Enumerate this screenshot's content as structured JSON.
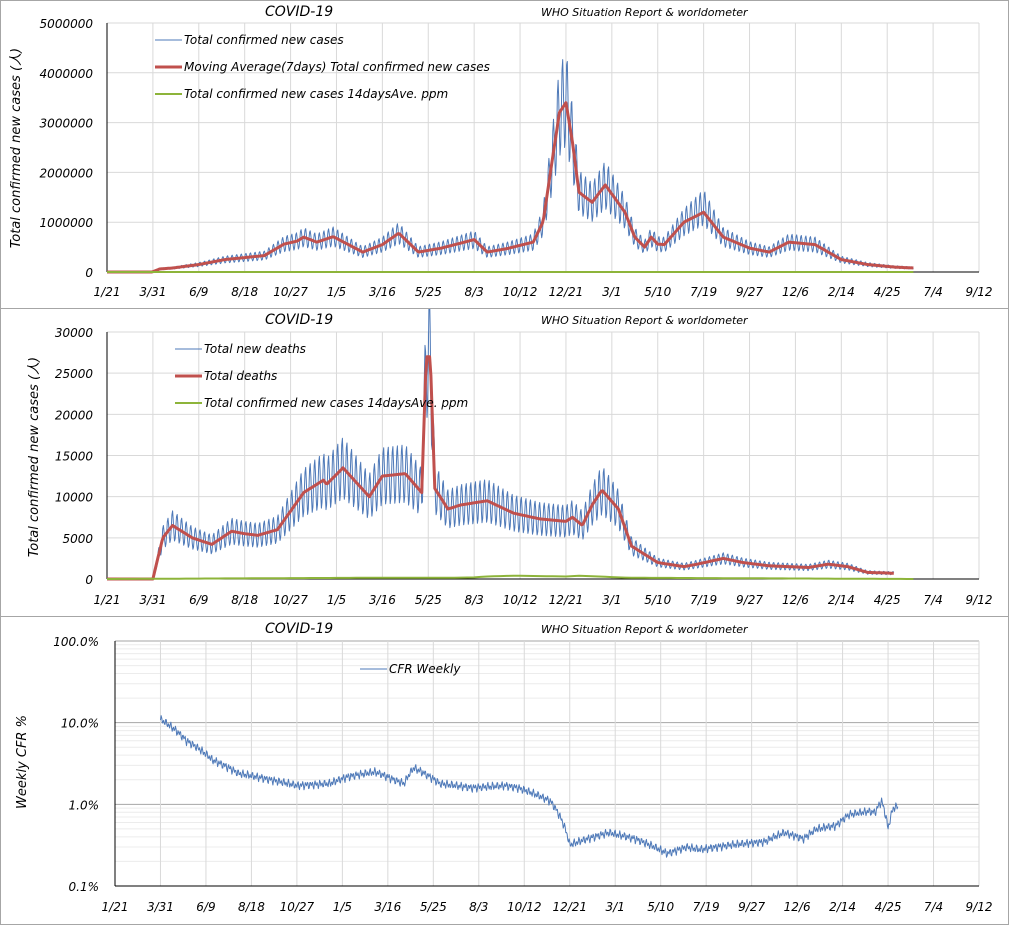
{
  "x_tick_labels": [
    "1/21",
    "3/31",
    "6/9",
    "8/18",
    "10/27",
    "1/5",
    "3/16",
    "5/25",
    "8/3",
    "10/12",
    "12/21",
    "3/1",
    "5/10",
    "7/19",
    "9/27",
    "12/6",
    "2/14",
    "4/25",
    "7/4",
    "9/12"
  ],
  "colors": {
    "blue": "#4e79b8",
    "red": "#c0504d",
    "green": "#8db43a",
    "grid": "#d9d9d9",
    "axis": "#000000"
  },
  "chart_data": [
    {
      "type": "line",
      "title": "COVID-19",
      "subtitle": "WHO Situation Report & worldometer",
      "ylabel": "Total confirmed new cases (人)",
      "xlabel": "",
      "ylim": [
        0,
        5000000
      ],
      "yticks": [
        "0",
        "1000000",
        "2000000",
        "3000000",
        "4000000",
        "5000000"
      ],
      "grid": true,
      "legend": "top-left",
      "series": [
        {
          "name": "Total confirmed new cases",
          "color": "blue",
          "kind": "daily",
          "x": [
            0,
            69,
            80,
            100,
            140,
            180,
            210,
            240,
            270,
            290,
            300,
            320,
            345,
            390,
            420,
            445,
            475,
            510,
            560,
            580,
            610,
            650,
            665,
            690,
            700,
            710,
            720,
            740,
            760,
            790,
            805,
            820,
            830,
            840,
            850,
            880,
            910,
            940,
            980,
            1010,
            1040,
            1080,
            1120,
            1160,
            1200,
            1230
          ],
          "y": [
            0,
            0,
            60000,
            80000,
            150000,
            250000,
            290000,
            330000,
            560000,
            620000,
            700000,
            600000,
            710000,
            400000,
            550000,
            780000,
            400000,
            480000,
            650000,
            400000,
            470000,
            600000,
            1000000,
            3200000,
            3500000,
            2600000,
            1600000,
            1400000,
            1750000,
            1200000,
            700000,
            500000,
            700000,
            560000,
            550000,
            1000000,
            1300000,
            700000,
            480000,
            400000,
            600000,
            550000,
            250000,
            150000,
            100000,
            80000
          ]
        },
        {
          "name": "Moving Average(7days) Total confirmed new cases",
          "color": "red",
          "kind": "avg",
          "x": [
            0,
            69,
            80,
            100,
            140,
            180,
            210,
            240,
            270,
            290,
            300,
            320,
            345,
            390,
            420,
            445,
            475,
            510,
            560,
            580,
            610,
            650,
            665,
            690,
            700,
            710,
            720,
            740,
            760,
            790,
            805,
            820,
            830,
            840,
            850,
            880,
            910,
            940,
            980,
            1010,
            1040,
            1080,
            1120,
            1160,
            1200,
            1230
          ],
          "y": [
            0,
            0,
            60000,
            80000,
            150000,
            250000,
            290000,
            330000,
            560000,
            620000,
            700000,
            600000,
            710000,
            400000,
            550000,
            780000,
            400000,
            480000,
            650000,
            400000,
            470000,
            600000,
            1000000,
            3200000,
            3400000,
            2600000,
            1600000,
            1400000,
            1750000,
            1200000,
            700000,
            500000,
            700000,
            560000,
            550000,
            1000000,
            1200000,
            700000,
            480000,
            400000,
            600000,
            550000,
            250000,
            150000,
            100000,
            80000
          ]
        },
        {
          "name": "Total confirmed new cases 14daysAve. ppm",
          "color": "green",
          "kind": "flat",
          "x": [
            0,
            1230
          ],
          "y": [
            0,
            0
          ]
        }
      ]
    },
    {
      "type": "line",
      "title": "COVID-19",
      "subtitle": "WHO Situation Report & worldometer",
      "ylabel": "Total confirmed new cases (人)",
      "xlabel": "",
      "ylim": [
        0,
        30000
      ],
      "yticks": [
        "0",
        "5000",
        "10000",
        "15000",
        "20000",
        "25000",
        "30000"
      ],
      "grid": true,
      "legend": "top-left",
      "series": [
        {
          "name": "Total new deaths",
          "color": "blue",
          "kind": "daily",
          "x": [
            0,
            50,
            55,
            70,
            85,
            100,
            130,
            160,
            190,
            210,
            230,
            260,
            300,
            330,
            335,
            360,
            400,
            420,
            455,
            480,
            487,
            493,
            500,
            520,
            540,
            580,
            620,
            660,
            700,
            710,
            725,
            740,
            755,
            780,
            800,
            840,
            880,
            900,
            940,
            970,
            1010,
            1040,
            1070,
            1100,
            1130,
            1160,
            1200
          ],
          "y": [
            0,
            0,
            0,
            0,
            5000,
            6500,
            5000,
            4200,
            5800,
            5500,
            5300,
            6000,
            10500,
            12000,
            11500,
            13500,
            10000,
            12500,
            12800,
            10500,
            27000,
            27000,
            11000,
            8500,
            9000,
            9500,
            8000,
            7300,
            7000,
            7500,
            6500,
            9000,
            10800,
            8500,
            4000,
            2000,
            1500,
            1800,
            2500,
            2000,
            1600,
            1500,
            1400,
            1800,
            1500,
            800,
            700
          ]
        },
        {
          "name": "Total deaths",
          "color": "red",
          "kind": "avg",
          "x": [
            0,
            50,
            55,
            70,
            85,
            100,
            130,
            160,
            190,
            210,
            230,
            260,
            300,
            330,
            335,
            360,
            400,
            420,
            455,
            480,
            487,
            493,
            500,
            520,
            540,
            580,
            620,
            660,
            700,
            710,
            725,
            740,
            755,
            780,
            800,
            840,
            880,
            900,
            940,
            970,
            1010,
            1040,
            1070,
            1100,
            1130,
            1160,
            1200
          ],
          "y": [
            0,
            0,
            0,
            0,
            5000,
            6500,
            5000,
            4200,
            5800,
            5500,
            5300,
            6000,
            10500,
            12000,
            11500,
            13500,
            10000,
            12500,
            12800,
            10500,
            27000,
            27000,
            11000,
            8500,
            9000,
            9500,
            8000,
            7300,
            7000,
            7500,
            6500,
            9000,
            10800,
            8500,
            4000,
            2000,
            1500,
            1800,
            2500,
            2000,
            1600,
            1500,
            1400,
            1800,
            1500,
            800,
            700
          ]
        },
        {
          "name": "Total confirmed new cases 14daysAve. ppm",
          "color": "green",
          "kind": "flat",
          "x": [
            0,
            400,
            520,
            560,
            580,
            620,
            700,
            720,
            780,
            800,
            1230
          ],
          "y": [
            0,
            150,
            150,
            200,
            300,
            400,
            300,
            400,
            200,
            150,
            0
          ]
        }
      ]
    },
    {
      "type": "line",
      "title": "COVID-19",
      "subtitle": "WHO Situation Report & worldometer",
      "ylabel": "Weekly CFR %",
      "xlabel": "",
      "yscale": "log",
      "ylim": [
        0.1,
        100
      ],
      "yticks": [
        "0.1%",
        "1.0%",
        "10.0%",
        "100.0%"
      ],
      "grid": true,
      "legend": "top-left",
      "series": [
        {
          "name": "CFR Weekly",
          "color": "blue",
          "kind": "daily",
          "x": [
            70,
            110,
            150,
            190,
            240,
            280,
            330,
            360,
            400,
            430,
            445,
            460,
            500,
            550,
            600,
            620,
            670,
            700,
            760,
            800,
            850,
            880,
            900,
            950,
            1000,
            1030,
            1060,
            1080,
            1110,
            1130,
            1150,
            1160,
            1170,
            1180,
            1190,
            1198,
            1205
          ],
          "y": [
            11,
            6,
            3.5,
            2.4,
            2.0,
            1.7,
            1.8,
            2.2,
            2.5,
            2.0,
            1.8,
            2.8,
            1.8,
            1.6,
            1.7,
            1.6,
            1.1,
            0.32,
            0.45,
            0.38,
            0.25,
            0.3,
            0.28,
            0.32,
            0.35,
            0.45,
            0.38,
            0.5,
            0.55,
            0.75,
            0.8,
            0.82,
            0.8,
            1.1,
            0.5,
            0.9,
            0.95
          ]
        }
      ]
    }
  ]
}
